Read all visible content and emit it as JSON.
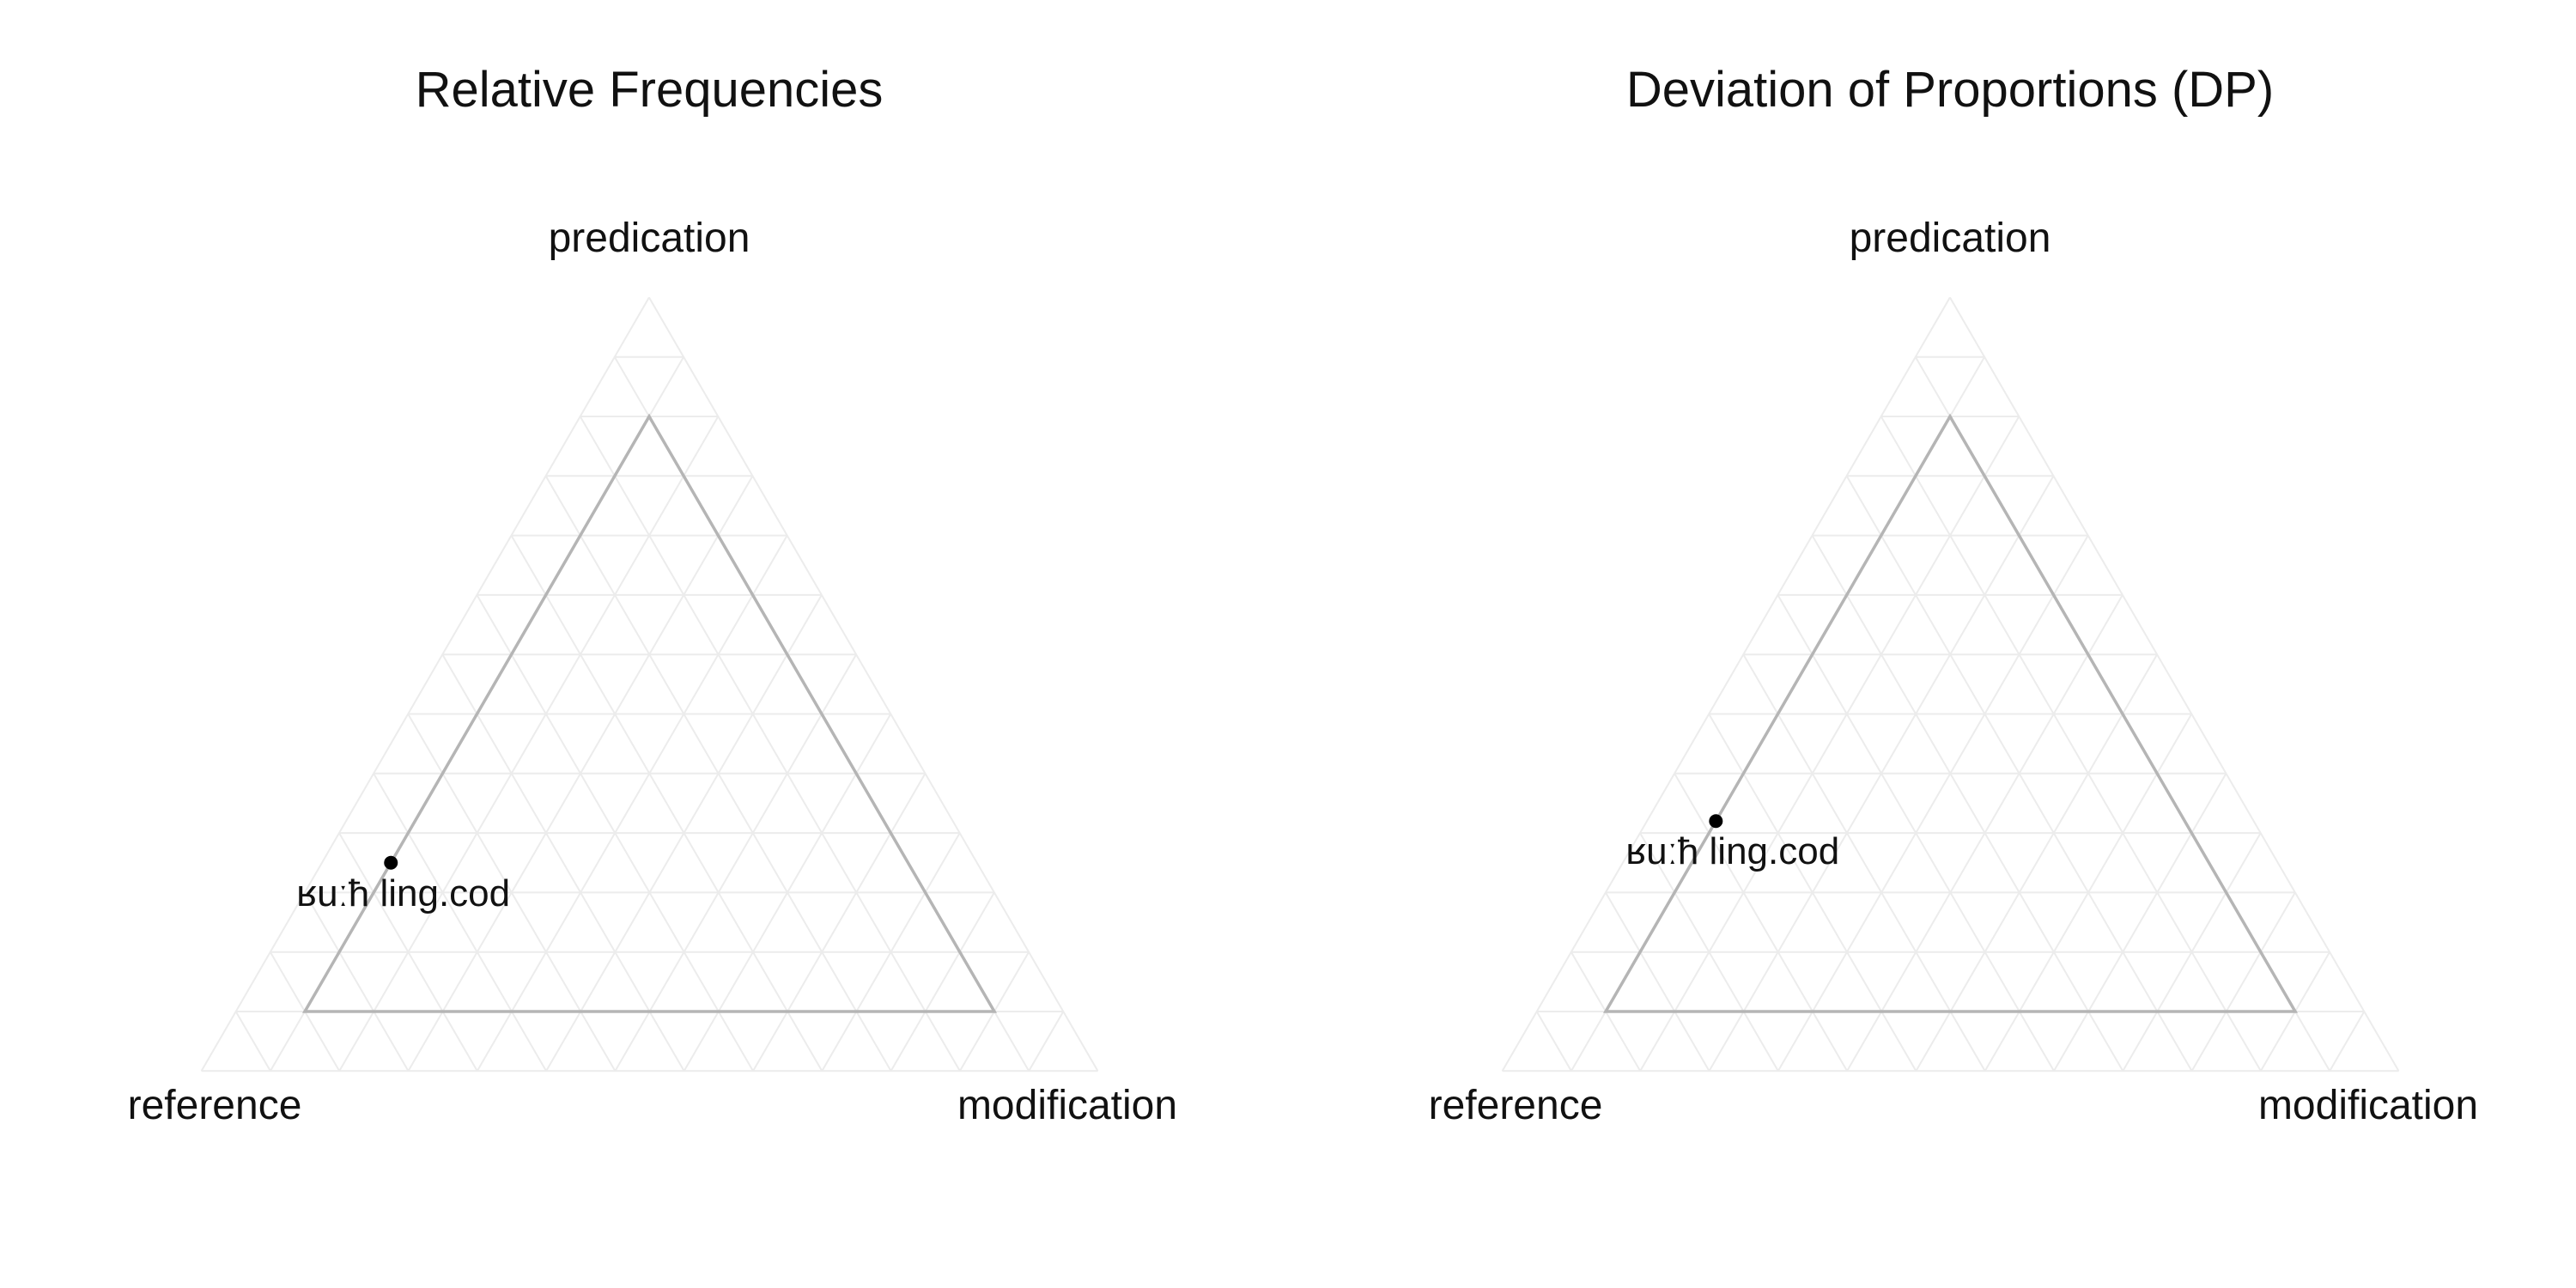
{
  "chart_data": [
    {
      "type": "ternary",
      "title": "Relative Frequencies",
      "axes": {
        "top": "predication",
        "left": "reference",
        "right": "modification"
      },
      "gridlines_step": 0.1,
      "points": [
        {
          "label": "ʁuːħ ling.cod",
          "reference": 0.75,
          "predication": 0.25,
          "modification": 0.0
        }
      ]
    },
    {
      "type": "ternary",
      "title": "Deviation of Proportions (DP)",
      "axes": {
        "top": "predication",
        "left": "reference",
        "right": "modification"
      },
      "gridlines_step": 0.1,
      "points": [
        {
          "label": "ʁuːħ ling.cod",
          "reference": 0.68,
          "predication": 0.32,
          "modification": 0.0
        }
      ]
    }
  ]
}
